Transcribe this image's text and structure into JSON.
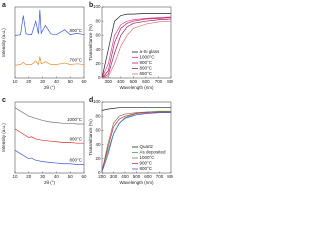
{
  "chart_data": [
    {
      "type": "line",
      "label": "a",
      "xlabel": "2θ (°)",
      "ylabel": "Intensity (a.u.)",
      "legend": "inline",
      "x": [
        10,
        14,
        16,
        18,
        22,
        25,
        27,
        28,
        29,
        32,
        36,
        40,
        46,
        50,
        55,
        60
      ],
      "xlim": [
        10,
        60
      ],
      "xticks": [
        10,
        20,
        30,
        40,
        50,
        60
      ],
      "ylim": [
        0,
        100
      ],
      "series": [
        {
          "name": "800°C",
          "color": "#3b5bd6",
          "values": [
            60,
            61,
            88,
            62,
            61,
            80,
            62,
            96,
            63,
            74,
            62,
            61,
            68,
            61,
            63,
            61
          ]
        },
        {
          "name": "700°C",
          "color": "#e8902f",
          "values": [
            18,
            19,
            22,
            19,
            19,
            24,
            19,
            30,
            20,
            23,
            19,
            19,
            21,
            19,
            20,
            19
          ]
        }
      ]
    },
    {
      "type": "line",
      "label": "b",
      "xlabel": "Wavelength (nm)",
      "ylabel": "Transmittance (%)",
      "legend": "lower right",
      "x": [
        250,
        300,
        350,
        400,
        450,
        500,
        600,
        700,
        800
      ],
      "xlim": [
        250,
        800
      ],
      "xticks": [
        300,
        400,
        500,
        600,
        700,
        800
      ],
      "ylim": [
        0,
        100
      ],
      "yticks": [
        0,
        20,
        40,
        60,
        80,
        100
      ],
      "series": [
        {
          "name": "a-Si glass",
          "color": "#222222",
          "values": [
            0,
            40,
            80,
            88,
            90,
            90,
            91,
            91,
            91
          ]
        },
        {
          "name": "1000°C",
          "color": "#e0409a",
          "values": [
            0,
            20,
            60,
            75,
            80,
            82,
            84,
            85,
            86
          ]
        },
        {
          "name": "900°C",
          "color": "#c2185b",
          "values": [
            0,
            10,
            50,
            70,
            77,
            80,
            83,
            84,
            85
          ]
        },
        {
          "name": "800°C",
          "color": "#8e2461",
          "values": [
            0,
            5,
            35,
            60,
            72,
            77,
            80,
            82,
            83
          ]
        },
        {
          "name": "650°C",
          "color": "#e57373",
          "values": [
            0,
            2,
            20,
            45,
            60,
            70,
            76,
            79,
            80
          ]
        }
      ]
    },
    {
      "type": "line",
      "label": "c",
      "xlabel": "2θ (°)",
      "ylabel": "Intensity (a.u.)",
      "legend": "inline",
      "x": [
        10,
        15,
        20,
        22,
        25,
        30,
        35,
        40,
        45,
        50,
        55,
        60
      ],
      "xlim": [
        10,
        60
      ],
      "xticks": [
        10,
        20,
        30,
        40,
        50,
        60
      ],
      "ylim": [
        0,
        100
      ],
      "series": [
        {
          "name": "1000°C",
          "color": "#777777",
          "values": [
            92,
            86,
            80,
            79,
            77,
            74,
            72,
            71,
            70,
            70,
            69,
            69
          ]
        },
        {
          "name": "900°C",
          "color": "#d8322c",
          "values": [
            62,
            56,
            50,
            51,
            48,
            46,
            45,
            44,
            43,
            43,
            42,
            42
          ]
        },
        {
          "name": "800°C",
          "color": "#3b5bd6",
          "values": [
            32,
            26,
            20,
            21,
            18,
            16,
            15,
            14,
            13,
            13,
            12,
            12
          ]
        }
      ]
    },
    {
      "type": "line",
      "label": "d",
      "xlabel": "Wavelength (nm)",
      "ylabel": "Transmittance (%)",
      "legend": "lower right",
      "x": [
        200,
        250,
        300,
        350,
        400,
        500,
        600,
        700,
        800
      ],
      "xlim": [
        200,
        800
      ],
      "xticks": [
        200,
        300,
        400,
        500,
        600,
        700,
        800
      ],
      "ylim": [
        0,
        100
      ],
      "yticks": [
        0,
        20,
        40,
        60,
        80,
        100
      ],
      "series": [
        {
          "name": "Quartz",
          "color": "#222222",
          "values": [
            88,
            90,
            91,
            92,
            92,
            92,
            92,
            92,
            92
          ]
        },
        {
          "name": "As deposited",
          "color": "#3aa845",
          "values": [
            5,
            30,
            55,
            70,
            78,
            84,
            86,
            87,
            87
          ]
        },
        {
          "name": "1000°C",
          "color": "#777777",
          "values": [
            2,
            40,
            70,
            80,
            83,
            85,
            86,
            86,
            86
          ]
        },
        {
          "name": "900°C",
          "color": "#d8322c",
          "values": [
            2,
            35,
            65,
            76,
            80,
            84,
            85,
            86,
            86
          ]
        },
        {
          "name": "800°C",
          "color": "#3b5bd6",
          "values": [
            2,
            25,
            55,
            70,
            77,
            82,
            84,
            85,
            85
          ]
        }
      ]
    }
  ]
}
